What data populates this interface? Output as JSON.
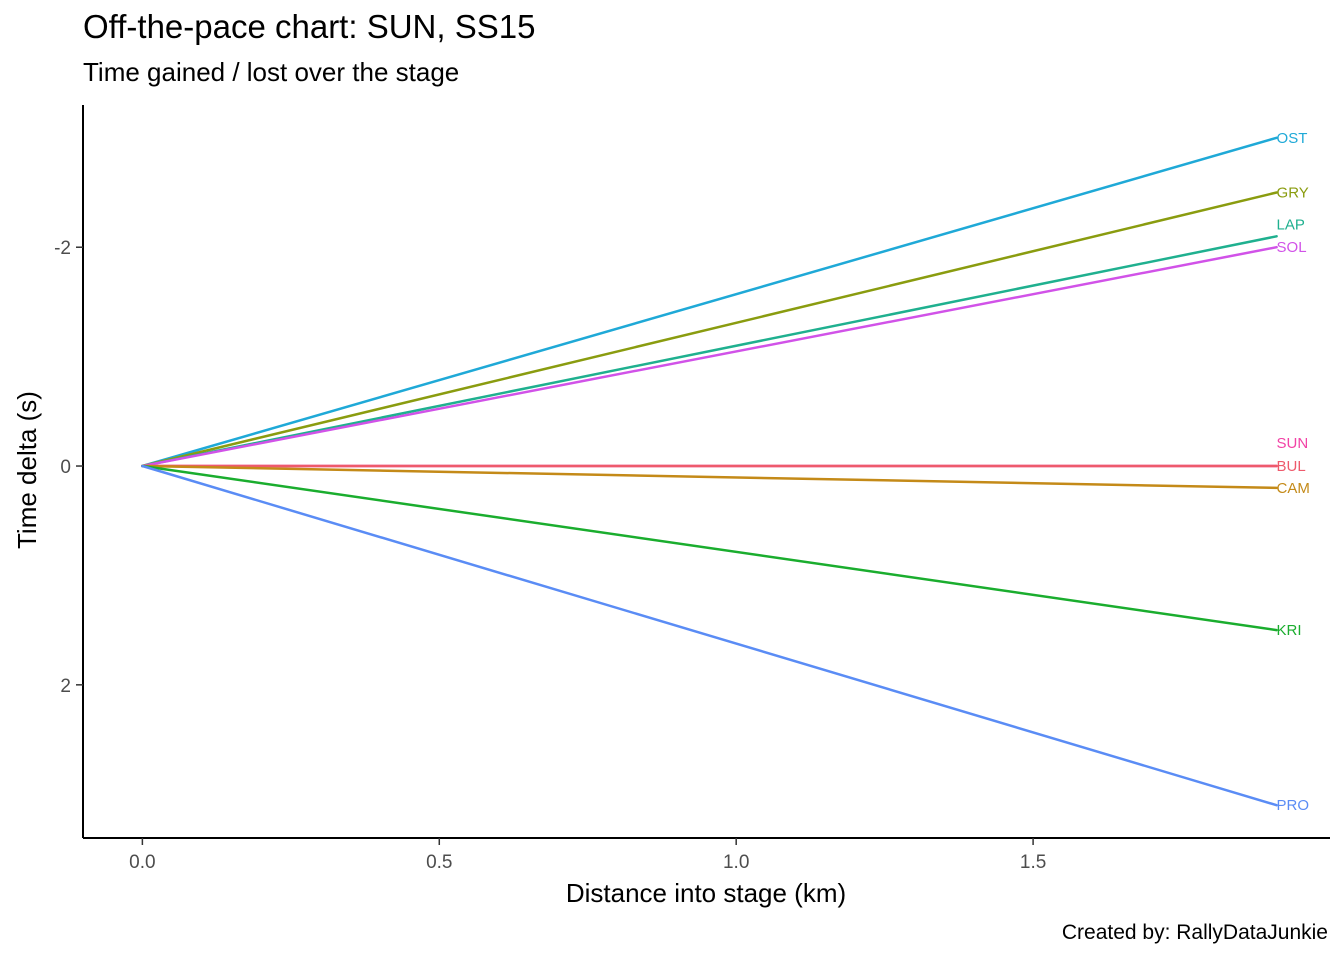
{
  "chart_data": {
    "type": "line",
    "title": "Off-the-pace chart: SUN, SS15",
    "subtitle": "Time gained / lost over the stage",
    "caption": "Created by: RallyDataJunkie",
    "xlabel": "Distance into stage (km)",
    "ylabel": "Time delta (s)",
    "xlim": [
      -0.1,
      2.0
    ],
    "ylim": [
      3.4,
      -3.3
    ],
    "y_reversed": true,
    "x_ticks": [
      0.0,
      0.5,
      1.0,
      1.5
    ],
    "x_tick_labels": [
      "0.0",
      "0.5",
      "1.0",
      "1.5"
    ],
    "y_ticks": [
      -2,
      0,
      2
    ],
    "y_tick_labels": [
      "-2",
      "0",
      "2"
    ],
    "grid": false,
    "legend": "none (series labelled at line ends)",
    "series": [
      {
        "name": "OST",
        "color": "#1FA9D7",
        "x": [
          0,
          1.91
        ],
        "y": [
          0,
          -3.0
        ]
      },
      {
        "name": "GRY",
        "color": "#8A9C0F",
        "x": [
          0,
          1.91
        ],
        "y": [
          0,
          -2.5
        ]
      },
      {
        "name": "LAP",
        "color": "#1FB08F",
        "x": [
          0,
          1.91
        ],
        "y": [
          0,
          -2.1
        ]
      },
      {
        "name": "SOL",
        "color": "#D152E8",
        "x": [
          0,
          1.91
        ],
        "y": [
          0,
          -2.0
        ]
      },
      {
        "name": "SUN",
        "color": "#F243A6",
        "x": [
          0,
          1.91
        ],
        "y": [
          0,
          0.0
        ]
      },
      {
        "name": "BUL",
        "color": "#EE5A6C",
        "x": [
          0,
          1.91
        ],
        "y": [
          0,
          0.0
        ]
      },
      {
        "name": "CAM",
        "color": "#C48A18",
        "x": [
          0,
          1.91
        ],
        "y": [
          0,
          0.2
        ]
      },
      {
        "name": "KRI",
        "color": "#1AAD2E",
        "x": [
          0,
          1.91
        ],
        "y": [
          0,
          1.5
        ]
      },
      {
        "name": "PRO",
        "color": "#5A8CF5",
        "x": [
          0,
          1.91
        ],
        "y": [
          0,
          3.1
        ]
      }
    ]
  }
}
